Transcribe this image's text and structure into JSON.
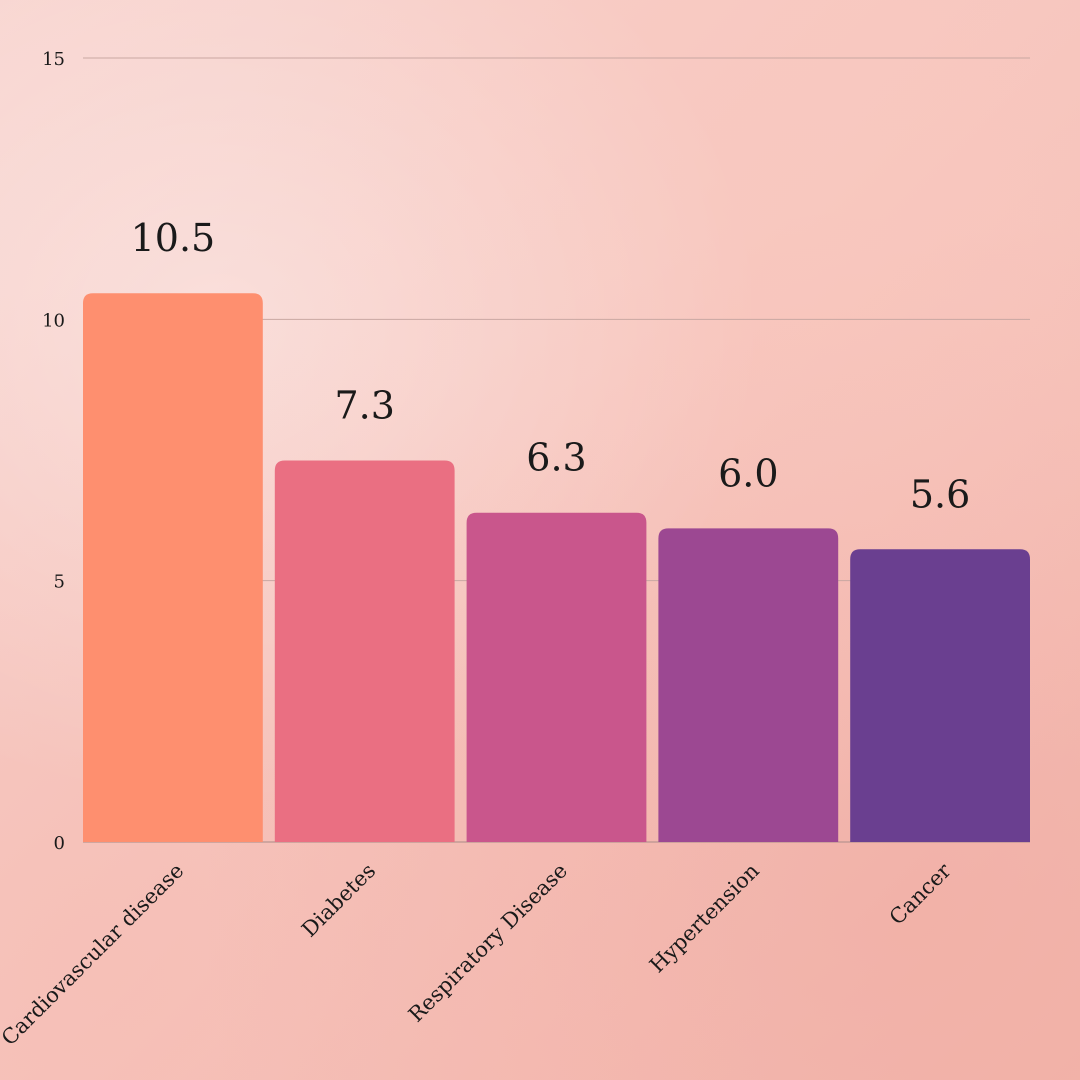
{
  "chart_data": {
    "type": "bar",
    "categories": [
      "Cardiovascular disease",
      "Diabetes",
      "Respiratory Disease",
      "Hypertension",
      "Cancer"
    ],
    "values": [
      10.5,
      7.3,
      6.3,
      6.0,
      5.6
    ],
    "value_labels": [
      "10.5",
      "7.3",
      "6.3",
      "6.0",
      "5.6"
    ],
    "ylim": [
      0,
      15
    ],
    "yticks": [
      0,
      5,
      10,
      15
    ],
    "grid": true,
    "legend": "none",
    "colors": [
      "#fe8f6f",
      "#ea6f82",
      "#c9568c",
      "#9c4892",
      "#6a3f90"
    ]
  }
}
